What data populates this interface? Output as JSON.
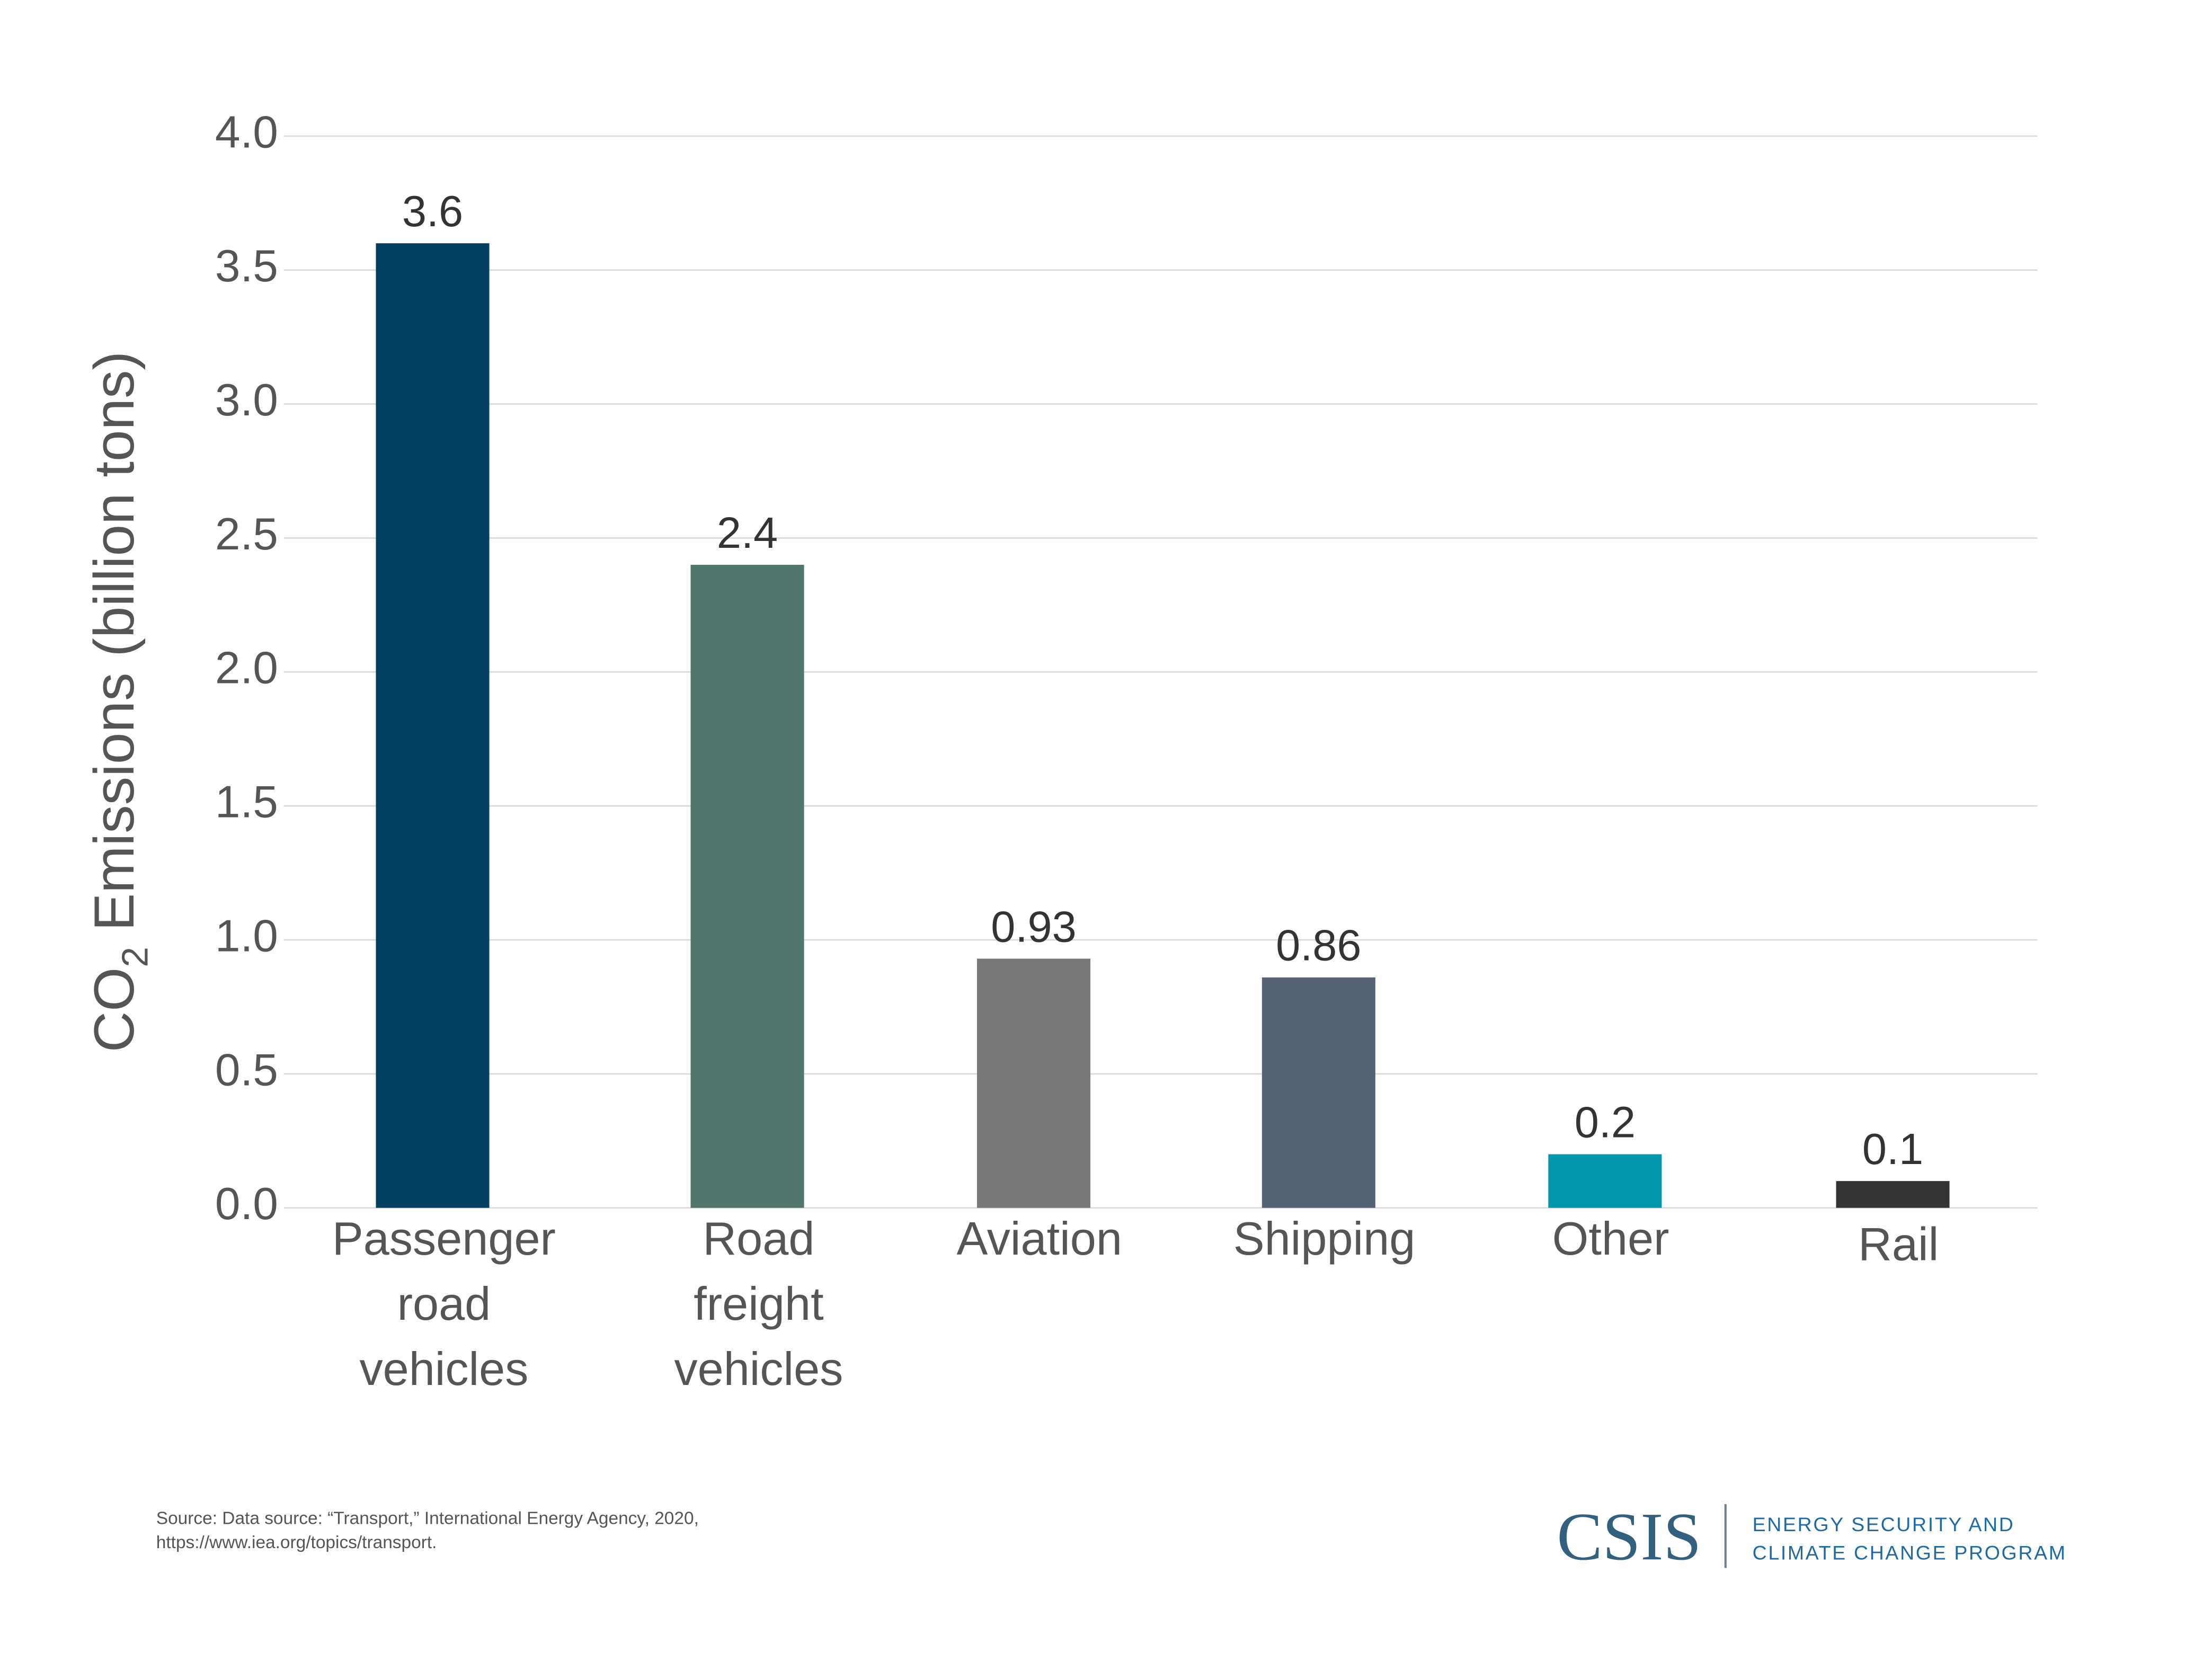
{
  "chart_data": {
    "type": "bar",
    "categories": [
      [
        "Passenger",
        "road",
        "vehicles"
      ],
      [
        "Road",
        "freight",
        "vehicles"
      ],
      [
        "Aviation"
      ],
      [
        "Shipping"
      ],
      [
        "Other"
      ],
      [
        "Rail"
      ]
    ],
    "values": [
      3.6,
      2.4,
      0.93,
      0.86,
      0.2,
      0.1
    ],
    "data_labels": [
      "3.6",
      "2.4",
      "0.93",
      "0.86",
      "0.2",
      "0.1"
    ],
    "colors": [
      "#023f62",
      "#51756c",
      "#787878",
      "#566276",
      "#0096ad",
      "#333333"
    ],
    "ylabel": {
      "main": "CO",
      "subscript": "2",
      "rest": " Emissions (billion tons)"
    },
    "xlabel": "",
    "ylim": [
      0,
      4.0
    ],
    "yticks": [
      "0.0",
      "0.5",
      "1.0",
      "1.5",
      "2.0",
      "2.5",
      "3.0",
      "3.5",
      "4.0"
    ],
    "grid": true,
    "gridline_color": "#d9d9d9"
  },
  "footer": {
    "source_line1": "Source: Data source: “Transport,” International Energy Agency, 2020,",
    "source_line2": "https://www.iea.org/topics/transport.",
    "logo_text": "CSIS",
    "program_line1": "ENERGY SECURITY AND",
    "program_line2": "CLIMATE CHANGE PROGRAM"
  }
}
